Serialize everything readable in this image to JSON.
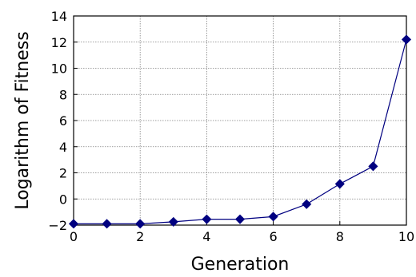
{
  "chart_data": {
    "type": "line",
    "title": "",
    "xlabel": "Generation",
    "ylabel": "Logarithm of Fitness",
    "xlim": [
      0,
      10
    ],
    "ylim": [
      -2,
      14
    ],
    "x_ticks": [
      0,
      2,
      4,
      6,
      8,
      10
    ],
    "y_ticks": [
      -2,
      0,
      2,
      4,
      6,
      8,
      10,
      12,
      14
    ],
    "x_tick_labels": [
      "0",
      "2",
      "4",
      "6",
      "8",
      "10"
    ],
    "y_tick_labels": [
      "−2",
      "0",
      "2",
      "4",
      "6",
      "8",
      "10",
      "12",
      "14"
    ],
    "grid": true,
    "legend": "none",
    "series": [
      {
        "x": [
          0,
          1,
          2,
          3,
          4,
          5,
          6,
          7,
          8,
          9,
          10
        ],
        "values": [
          -1.9,
          -1.9,
          -1.9,
          -1.75,
          -1.55,
          -1.55,
          -1.35,
          -0.4,
          1.15,
          2.5,
          12.2
        ],
        "color": "#000080",
        "marker": "diamond"
      }
    ]
  }
}
